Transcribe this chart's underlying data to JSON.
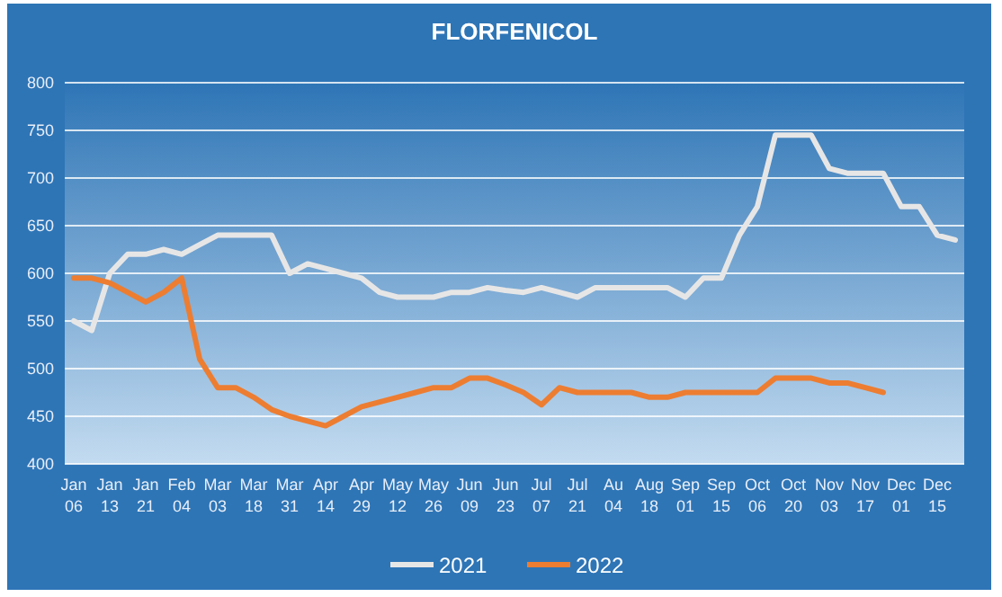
{
  "chart_data": {
    "type": "line",
    "title": "FLORFENICOL",
    "categories": [
      "Jan 06",
      null,
      "Jan 13",
      null,
      "Jan 21",
      null,
      "Feb 04",
      null,
      "Mar 03",
      null,
      "Mar 18",
      null,
      "Mar 31",
      null,
      "Apr 14",
      null,
      "Apr 29",
      null,
      "May 12",
      null,
      "May 26",
      null,
      "Jun 09",
      null,
      "Jun 23",
      null,
      "Jul 07",
      null,
      "Jul 21",
      null,
      "Au 04",
      null,
      "Aug 18",
      null,
      "Sep 01",
      null,
      "Sep 15",
      null,
      "Oct 06",
      null,
      "Oct 20",
      null,
      "Nov 03",
      null,
      "Nov 17",
      null,
      "Dec 01",
      null,
      "Dec 15",
      null
    ],
    "series": [
      {
        "name": "2021",
        "color": "#e7e6e6",
        "values": [
          550,
          540,
          600,
          620,
          620,
          625,
          620,
          630,
          640,
          640,
          640,
          640,
          600,
          610,
          605,
          600,
          595,
          580,
          575,
          575,
          575,
          580,
          580,
          585,
          582,
          580,
          585,
          580,
          575,
          585,
          585,
          585,
          585,
          585,
          575,
          595,
          595,
          640,
          670,
          745,
          745,
          745,
          710,
          705,
          705,
          705,
          670,
          670,
          640,
          635
        ]
      },
      {
        "name": "2022",
        "color": "#ed7d31",
        "values": [
          595,
          595,
          590,
          580,
          570,
          580,
          595,
          510,
          480,
          480,
          470,
          457,
          450,
          445,
          440,
          450,
          460,
          465,
          470,
          475,
          480,
          480,
          490,
          490,
          483,
          475,
          462,
          480,
          475,
          475,
          475,
          475,
          470,
          470,
          475,
          475,
          475,
          475,
          475,
          490,
          490,
          490,
          485,
          485,
          480,
          475,
          null,
          null,
          null,
          null
        ]
      }
    ],
    "ylim": [
      400,
      800
    ],
    "yticks": [
      400,
      450,
      500,
      550,
      600,
      650,
      700,
      750,
      800
    ],
    "grid": "y",
    "legend": "bottom",
    "line_style": "solid",
    "marker": "none"
  }
}
